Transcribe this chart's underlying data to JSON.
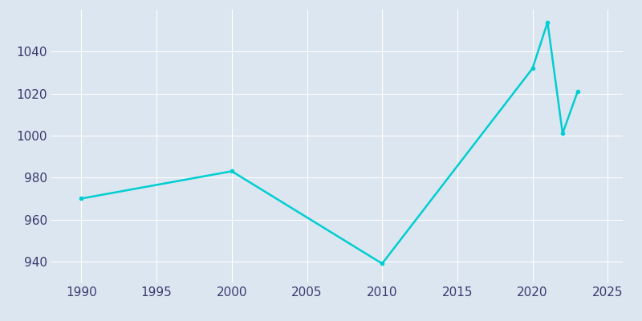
{
  "years": [
    1990,
    2000,
    2010,
    2020,
    2021,
    2022,
    2023
  ],
  "population": [
    970,
    983,
    939,
    1032,
    1054,
    1001,
    1021
  ],
  "line_color": "#00CED1",
  "marker": "o",
  "marker_size": 3,
  "line_width": 1.8,
  "bg_color": "#dce6f0",
  "plot_bg_color": "#dce6f0",
  "xlim": [
    1988,
    2026
  ],
  "ylim": [
    930,
    1060
  ],
  "xticks": [
    1990,
    1995,
    2000,
    2005,
    2010,
    2015,
    2020,
    2025
  ],
  "yticks": [
    940,
    960,
    980,
    1000,
    1020,
    1040
  ],
  "tick_label_color": "#3a3a6e",
  "grid_color": "#ffffff",
  "grid_linewidth": 0.8,
  "spine_color": "#dce6f0",
  "tick_label_fontsize": 11
}
